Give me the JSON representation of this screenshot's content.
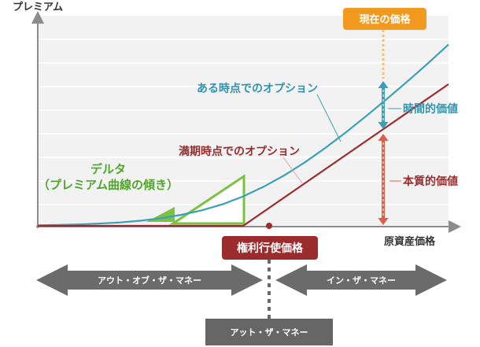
{
  "colors": {
    "plot_bg": "#f2f2f2",
    "grid": "#ffffff",
    "axis": "#8c8c8c",
    "teal": "#3aa0b7",
    "maroon": "#9b2b2c",
    "green": "#7cc242",
    "orange": "#f29a1f",
    "red_arrow": "#d9604a",
    "gray_box": "#666666",
    "otm_arrow": "#6b6b6b",
    "label_teal": "#2f94b0",
    "label_maroon": "#9b2b2c",
    "label_green": "#4fa62b"
  },
  "chart_data": {
    "type": "line",
    "xlabel": "原資産価格",
    "ylabel": "プレミアム",
    "grid": true,
    "series": [
      {
        "name": "ある時点でのオプション",
        "x": [
          0,
          0.5,
          1,
          1.5,
          2,
          2.5,
          3,
          3.5,
          4,
          4.5,
          5,
          5.5,
          6,
          6.5,
          7,
          7.5,
          8,
          8.5,
          9,
          9.5,
          10
        ],
        "y": [
          0.02,
          0.03,
          0.05,
          0.08,
          0.12,
          0.18,
          0.27,
          0.39,
          0.55,
          0.76,
          1.04,
          1.38,
          1.78,
          2.24,
          2.75,
          3.3,
          3.88,
          4.48,
          5.1,
          5.74,
          6.4
        ]
      },
      {
        "name": "満期時点でのオプション",
        "x": [
          0,
          5,
          10
        ],
        "y": [
          0,
          0,
          5.0
        ]
      }
    ],
    "annotations": {
      "current_price": "現在の価格",
      "time_value": "時間的価値",
      "intrinsic_value": "本質的価値",
      "delta_line1": "デルタ",
      "delta_line2": "（プレミアム曲線の傾き）",
      "strike": "権利行使価格"
    }
  },
  "moneyness": {
    "otm": "アウト・オブ・ザ・マネー",
    "itm": "イン・ザ・マネー",
    "atm": "アット・ザ・マネー"
  }
}
